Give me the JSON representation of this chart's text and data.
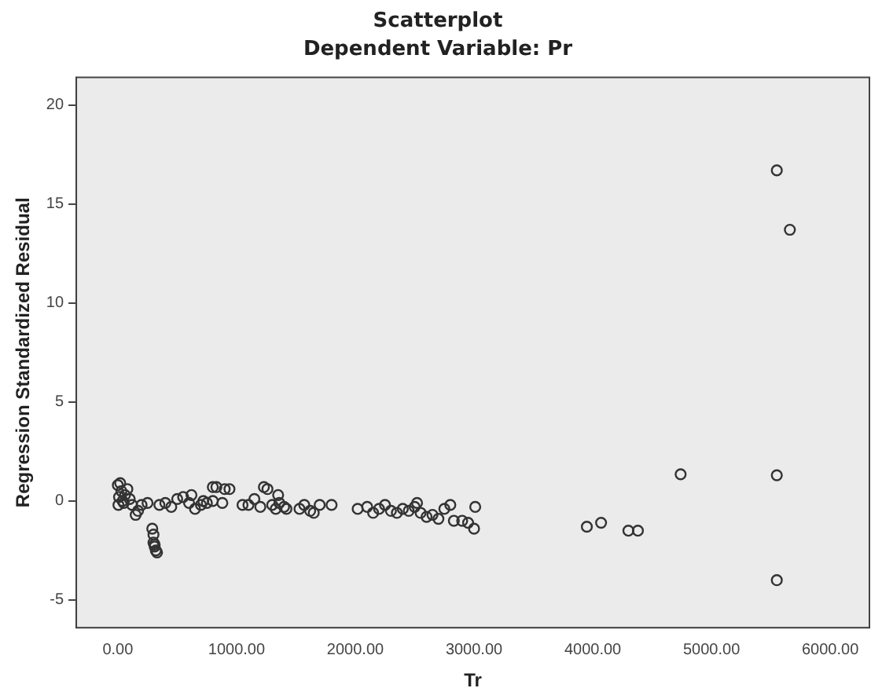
{
  "chart_data": {
    "type": "scatter",
    "title": "Scatterplot",
    "subtitle": "Dependent Variable: Pr",
    "xlabel": "Tr",
    "ylabel": "Regression Standardized Residual",
    "marker": "circle",
    "grid": false,
    "legend": false,
    "xlim": [
      -350,
      6330
    ],
    "ylim": [
      -6.4,
      21.4
    ],
    "xticks": [
      {
        "value": 0,
        "label": "0.00"
      },
      {
        "value": 1000,
        "label": "1000.00"
      },
      {
        "value": 2000,
        "label": "2000.00"
      },
      {
        "value": 3000,
        "label": "3000.00"
      },
      {
        "value": 4000,
        "label": "4000.00"
      },
      {
        "value": 5000,
        "label": "5000.00"
      },
      {
        "value": 6000,
        "label": "6000.00"
      }
    ],
    "yticks": [
      -5,
      0,
      5,
      10,
      15,
      20
    ],
    "series": [
      {
        "color": "#333333",
        "x": [
          0,
          20,
          30,
          10,
          40,
          5,
          50,
          60,
          80,
          100,
          120,
          150,
          170,
          200,
          290,
          300,
          300,
          310,
          320,
          330,
          310,
          250,
          350,
          400,
          450,
          500,
          550,
          600,
          620,
          650,
          700,
          720,
          750,
          800,
          800,
          830,
          880,
          940,
          900,
          1050,
          1100,
          1150,
          1200,
          1230,
          1260,
          1300,
          1330,
          1360,
          1400,
          1420,
          1350,
          1530,
          1570,
          1620,
          1650,
          1700,
          1800,
          2020,
          2100,
          2150,
          2200,
          2250,
          2300,
          2350,
          2400,
          2450,
          2500,
          2520,
          2550,
          2600,
          2650,
          2700,
          2750,
          2800,
          2830,
          2900,
          2950,
          3000,
          3010,
          3950,
          4070,
          4300,
          4380,
          4740,
          5550,
          5550,
          5550,
          5660
        ],
        "values": [
          0.8,
          0.9,
          0.5,
          0.2,
          0,
          -0.2,
          -0.1,
          0.3,
          0.6,
          0.1,
          -0.2,
          -0.7,
          -0.5,
          -0.2,
          -1.4,
          -1.7,
          -2.1,
          -2.3,
          -2.5,
          -2.6,
          -2.2,
          -0.1,
          -0.2,
          -0.1,
          -0.3,
          0.1,
          0.2,
          -0.1,
          0.3,
          -0.4,
          -0.2,
          0,
          -0.1,
          0,
          0.7,
          0.7,
          -0.1,
          0.6,
          0.6,
          -0.2,
          -0.2,
          0.1,
          -0.3,
          0.7,
          0.6,
          -0.2,
          -0.4,
          -0.1,
          -0.3,
          -0.4,
          0.3,
          -0.4,
          -0.2,
          -0.5,
          -0.6,
          -0.2,
          -0.2,
          -0.4,
          -0.3,
          -0.6,
          -0.4,
          -0.2,
          -0.5,
          -0.6,
          -0.4,
          -0.5,
          -0.3,
          -0.1,
          -0.6,
          -0.8,
          -0.7,
          -0.9,
          -0.4,
          -0.2,
          -1.0,
          -1.0,
          -1.1,
          -1.4,
          -0.3,
          -1.3,
          -1.1,
          -1.5,
          -1.5,
          1.35,
          16.7,
          1.3,
          -4.0,
          13.7
        ]
      }
    ]
  }
}
